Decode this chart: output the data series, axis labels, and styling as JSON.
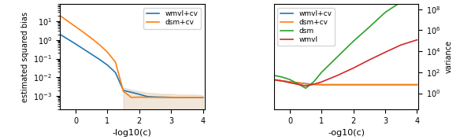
{
  "left_plot": {
    "xlabel": "-log10(c)",
    "ylabel": "estimated squared bias",
    "xlim": [
      -0.5,
      4.05
    ],
    "ylim_log": [
      0.0002,
      80
    ],
    "x": [
      -0.5,
      -0.25,
      0.0,
      0.25,
      0.5,
      0.75,
      1.0,
      1.25,
      1.5,
      1.75,
      2.0,
      2.25,
      2.5,
      2.75,
      3.0,
      3.25,
      3.5,
      3.75,
      4.0
    ],
    "wmvl_cv_y": [
      2.0,
      1.1,
      0.6,
      0.32,
      0.17,
      0.09,
      0.045,
      0.018,
      0.002,
      0.0016,
      0.00125,
      0.00095,
      0.0009,
      0.00088,
      0.00086,
      0.00085,
      0.00085,
      0.00085,
      0.00085
    ],
    "dsm_cv_y": [
      20.0,
      10.0,
      5.0,
      2.5,
      1.2,
      0.55,
      0.22,
      0.065,
      0.0018,
      0.00085,
      0.00088,
      0.00086,
      0.00085,
      0.00085,
      0.00085,
      0.00085,
      0.00085,
      0.00085,
      0.00085
    ],
    "fill_x": [
      1.5,
      1.75,
      2.0,
      2.25,
      2.5,
      2.75,
      3.0,
      3.25,
      3.5,
      3.75,
      4.0
    ],
    "fill_lower": [
      0.00018,
      0.00018,
      0.00018,
      0.00018,
      0.00018,
      0.00018,
      0.00018,
      0.00018,
      0.00018,
      0.00018,
      0.00018
    ],
    "fill_upper": [
      0.0028,
      0.0022,
      0.0018,
      0.0015,
      0.0014,
      0.0013,
      0.0013,
      0.0012,
      0.0012,
      0.0012,
      0.0011
    ],
    "wmvl_cv_color": "#1f77b4",
    "dsm_cv_color": "#ff7f0e",
    "fill_color": "#d4b896",
    "fill_alpha": 0.35,
    "legend_labels": [
      "wmvl+cv",
      "dsm+cv"
    ],
    "xticks": [
      0,
      1,
      2,
      3,
      4
    ],
    "xtick_labels": [
      "0",
      "1",
      "2",
      "3",
      "4"
    ]
  },
  "right_plot": {
    "xlabel": "-og10(c)",
    "ylabel": "variance",
    "xlim": [
      -0.5,
      4.05
    ],
    "ylim_log": [
      0.03,
      300000000.0
    ],
    "x": [
      -0.5,
      -0.25,
      0.0,
      0.25,
      0.5,
      0.75,
      1.0,
      1.5,
      2.0,
      2.5,
      3.0,
      3.5,
      4.0
    ],
    "wmvl_cv_y": [
      18,
      15,
      12,
      10,
      8,
      7,
      6.5,
      6.5,
      6.5,
      6.5,
      6.5,
      6.5,
      6.5
    ],
    "dsm_cv_y": [
      18,
      15,
      12,
      10,
      8,
      7,
      6.5,
      6.5,
      6.5,
      6.5,
      6.5,
      6.5,
      6.5
    ],
    "dsm_y": [
      50,
      35,
      20,
      8,
      3,
      12,
      100,
      3000,
      90000,
      2000000,
      50000000,
      500000000,
      500000000
    ],
    "wmvl_y": [
      20,
      15,
      10,
      7,
      5,
      7,
      12,
      50,
      250,
      1500,
      8000,
      40000,
      120000
    ],
    "wmvl_cv_color": "#1f77b4",
    "dsm_cv_color": "#ff7f0e",
    "dsm_color": "#2ca02c",
    "wmvl_color": "#d62728",
    "legend_labels": [
      "wmvl+cv",
      "dsm+cv",
      "dsm",
      "wmvl"
    ],
    "xticks": [
      0,
      1,
      2,
      3,
      4
    ],
    "xtick_labels": [
      "0",
      "1",
      "2",
      "3",
      "4"
    ]
  }
}
